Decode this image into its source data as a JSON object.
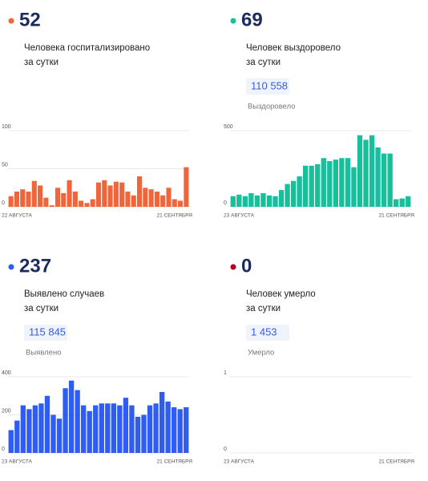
{
  "chart_data": [
    {
      "type": "bar",
      "headline": "52",
      "label": [
        "Человека госпитализировано",
        "за сутки"
      ],
      "color": "#f2643a",
      "categories": [
        "22 АВГУСТА",
        null,
        null,
        null,
        null,
        null,
        null,
        null,
        null,
        null,
        null,
        null,
        null,
        null,
        null,
        null,
        null,
        null,
        null,
        null,
        null,
        null,
        null,
        null,
        null,
        null,
        null,
        null,
        null,
        null,
        "21 СЕНТЯБРЯ"
      ],
      "values": [
        14,
        20,
        23,
        20,
        34,
        28,
        12,
        2,
        25,
        18,
        35,
        20,
        8,
        5,
        10,
        32,
        35,
        28,
        33,
        32,
        20,
        15,
        40,
        25,
        23,
        20,
        15,
        25,
        10,
        8,
        52
      ],
      "ylim": [
        0,
        100
      ],
      "yticks": [
        0,
        50,
        100
      ],
      "grid": true
    },
    {
      "type": "bar",
      "headline": "69",
      "label": [
        "Человек выздоровело",
        "за сутки"
      ],
      "total": "110 558",
      "total_label": "Выздоровело",
      "color": "#17bf9b",
      "categories": [
        "23 АВГУСТА",
        null,
        null,
        null,
        null,
        null,
        null,
        null,
        null,
        null,
        null,
        null,
        null,
        null,
        null,
        null,
        null,
        null,
        null,
        null,
        null,
        null,
        null,
        null,
        null,
        null,
        null,
        null,
        null,
        "21 СЕНТЯБРЯ"
      ],
      "values": [
        70,
        80,
        70,
        90,
        75,
        90,
        75,
        70,
        110,
        150,
        170,
        200,
        270,
        270,
        280,
        320,
        300,
        310,
        320,
        320,
        260,
        470,
        440,
        470,
        390,
        350,
        350,
        50,
        55,
        70
      ],
      "ylim": [
        0,
        500
      ],
      "yticks": [
        0,
        500
      ],
      "grid": true
    },
    {
      "type": "bar",
      "headline": "237",
      "label": [
        "Выявлено случаев",
        "за сутки"
      ],
      "total": "115 845",
      "total_label": "Выявлено",
      "color": "#2f5cf2",
      "categories": [
        "23 АВГУСТА",
        null,
        null,
        null,
        null,
        null,
        null,
        null,
        null,
        null,
        null,
        null,
        null,
        null,
        null,
        null,
        null,
        null,
        null,
        null,
        null,
        null,
        null,
        null,
        null,
        null,
        null,
        null,
        null,
        "21 СЕНТЯБРЯ"
      ],
      "values": [
        120,
        170,
        250,
        230,
        250,
        260,
        300,
        200,
        180,
        340,
        380,
        330,
        250,
        220,
        250,
        260,
        260,
        260,
        250,
        290,
        250,
        190,
        200,
        250,
        260,
        320,
        270,
        240,
        230,
        240
      ],
      "ylim": [
        0,
        400
      ],
      "yticks": [
        0,
        200,
        400
      ],
      "grid": true
    },
    {
      "type": "bar",
      "headline": "0",
      "label": [
        "Человек умерло",
        "за сутки"
      ],
      "total": "1 453",
      "total_label": "Умерло",
      "color": "#b3001b",
      "categories": [
        "23 АВГУСТА",
        null,
        null,
        null,
        null,
        null,
        null,
        null,
        null,
        null,
        null,
        null,
        null,
        null,
        null,
        null,
        null,
        null,
        null,
        null,
        null,
        null,
        null,
        null,
        null,
        null,
        null,
        null,
        null,
        "21 СЕНТЯБРЯ"
      ],
      "values": [
        0,
        0,
        0,
        0,
        0,
        0,
        0,
        0,
        0,
        0,
        0,
        0,
        0,
        0,
        0,
        0,
        0,
        0,
        0,
        0,
        0,
        0,
        0,
        0,
        0,
        0,
        0,
        0,
        0,
        0
      ],
      "ylim": [
        0,
        1
      ],
      "yticks": [
        0,
        1
      ],
      "grid": true
    }
  ]
}
